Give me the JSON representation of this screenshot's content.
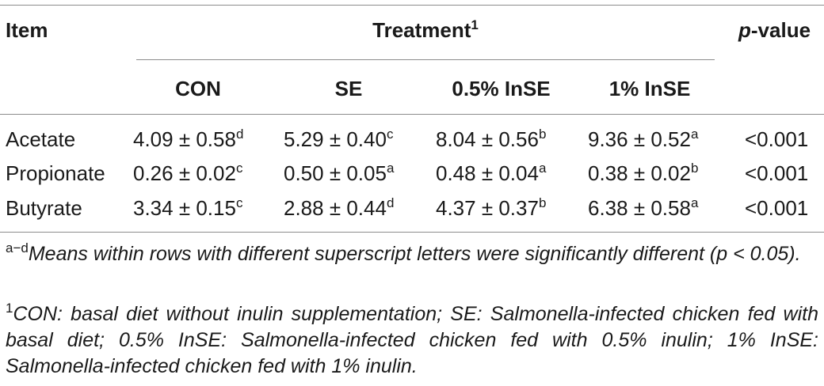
{
  "header": {
    "item": "Item",
    "treatment": "Treatment",
    "treatment_sup": "1",
    "pvalue_italic": "p",
    "pvalue_rest": "-value",
    "columns": [
      "CON",
      "SE",
      "0.5% InSE",
      "1% InSE"
    ]
  },
  "rows": [
    {
      "name": "Acetate",
      "values": [
        {
          "v": "4.09 ± 0.58",
          "s": "d"
        },
        {
          "v": "5.29 ± 0.40",
          "s": "c"
        },
        {
          "v": "8.04 ± 0.56",
          "s": "b"
        },
        {
          "v": "9.36 ± 0.52",
          "s": "a"
        }
      ],
      "p": "<0.001"
    },
    {
      "name": "Propionate",
      "values": [
        {
          "v": "0.26 ± 0.02",
          "s": "c"
        },
        {
          "v": "0.50 ± 0.05",
          "s": "a"
        },
        {
          "v": "0.48 ± 0.04",
          "s": "a"
        },
        {
          "v": "0.38 ± 0.02",
          "s": "b"
        }
      ],
      "p": "<0.001"
    },
    {
      "name": "Butyrate",
      "values": [
        {
          "v": "3.34 ± 0.15",
          "s": "c"
        },
        {
          "v": "2.88 ± 0.44",
          "s": "d"
        },
        {
          "v": "4.37 ± 0.37",
          "s": "b"
        },
        {
          "v": "6.38 ± 0.58",
          "s": "a"
        }
      ],
      "p": "<0.001"
    }
  ],
  "footnotes": {
    "note1_sup": "a−d",
    "note1_text": "Means within rows with different superscript letters were significantly different (p < 0.05).",
    "note2_sup": "1",
    "note2_text": "CON: basal diet without inulin supplementation; SE: Salmonella-infected chicken fed with basal diet; 0.5% InSE: Salmonella-infected chicken fed with 0.5% inulin; 1% InSE: Salmonella-infected chicken fed with 1% inulin."
  }
}
